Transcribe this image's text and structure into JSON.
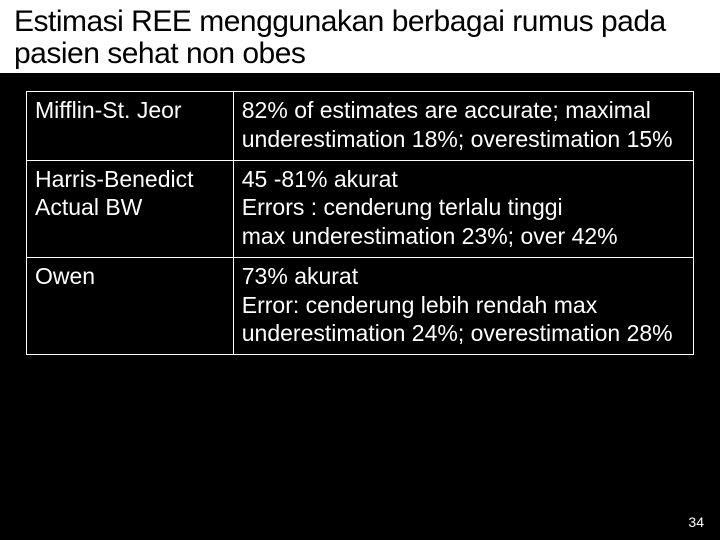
{
  "title": "Estimasi REE menggunakan berbagai rumus pada pasien sehat non obes",
  "table": {
    "rows": [
      {
        "formula": "Mifflin-St. Jeor",
        "desc": "82% of estimates are accurate; maximal underestimation 18%; overestimation 15%"
      },
      {
        "formula": "Harris-Benedict Actual BW",
        "desc_lines": [
          "45 -81%  akurat",
          "Errors : cenderung terlalu tinggi",
          "max underestimation 23%; over 42%"
        ]
      },
      {
        "formula": "Owen",
        "desc_lines": [
          "73% akurat",
          "Error: cenderung lebih rendah  max underestimation 24%; overestimation 28%"
        ]
      }
    ]
  },
  "page_number": "34",
  "colors": {
    "bg": "#000000",
    "title_bg": "#ffffff",
    "text": "#ffffff",
    "title_text": "#000000",
    "border": "#ffffff"
  }
}
